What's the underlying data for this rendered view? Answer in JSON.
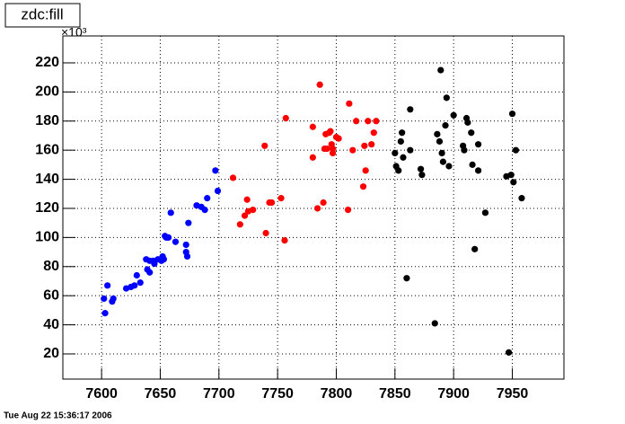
{
  "chart_data": {
    "type": "scatter",
    "title": "zdc:fill",
    "footer": "Tue Aug 22 15:36:17 2006",
    "y_multiplier": "×10³",
    "xlim": [
      7567,
      7994
    ],
    "xticks": [
      7600,
      7650,
      7700,
      7750,
      7800,
      7850,
      7900,
      7950
    ],
    "ylim": [
      2.7,
      238.5
    ],
    "yticks": [
      20,
      40,
      60,
      80,
      100,
      120,
      140,
      160,
      180,
      200,
      220
    ],
    "grid": true,
    "series": [
      {
        "color": "#0000ff",
        "x": [
          7602,
          7603,
          7605,
          7609,
          7610,
          7621,
          7625,
          7628,
          7630,
          7633,
          7638,
          7639,
          7641,
          7641,
          7644,
          7645,
          7648,
          7651,
          7652,
          7653,
          7654,
          7655,
          7656,
          7657,
          7659,
          7663,
          7672,
          7672,
          7673,
          7674,
          7681,
          7685,
          7688,
          7690,
          7697,
          7699
        ],
        "values": [
          58,
          48,
          67,
          56,
          58,
          65,
          66,
          67,
          74,
          69,
          85,
          78,
          76,
          84,
          84,
          82,
          85,
          84,
          87,
          85,
          101,
          100,
          100,
          100,
          117,
          97,
          95,
          90,
          87,
          110,
          122,
          121,
          119,
          127,
          146,
          132
        ]
      },
      {
        "color": "#ff0000",
        "x": [
          7712,
          7718,
          7722,
          7724,
          7725,
          7729,
          7739,
          7740,
          7743,
          7745,
          7753,
          7756,
          7757,
          7780,
          7780,
          7784,
          7786,
          7789,
          7790,
          7791,
          7792,
          7794,
          7795,
          7796,
          7797,
          7797,
          7800,
          7802,
          7810,
          7811,
          7814,
          7817,
          7823,
          7824,
          7825,
          7827,
          7830,
          7832,
          7834
        ],
        "values": [
          141,
          109,
          115,
          126,
          118,
          119,
          163,
          103,
          124,
          124,
          127,
          98,
          182,
          176,
          155,
          120,
          205,
          124,
          161,
          171,
          161,
          172,
          173,
          164,
          161,
          158,
          169,
          168,
          119,
          192,
          160,
          180,
          135,
          163,
          146,
          180,
          164,
          172,
          180
        ]
      },
      {
        "color": "#000000",
        "x": [
          7850,
          7851,
          7853,
          7855,
          7856,
          7857,
          7860,
          7863,
          7863,
          7872,
          7873,
          7884,
          7886,
          7888,
          7889,
          7890,
          7891,
          7893,
          7894,
          7896,
          7900,
          7908,
          7909,
          7911,
          7912,
          7915,
          7916,
          7918,
          7921,
          7921,
          7927,
          7945,
          7947,
          7949,
          7950,
          7951,
          7953,
          7958
        ],
        "values": [
          158,
          149,
          146,
          166,
          172,
          155,
          72,
          160,
          188,
          147,
          143,
          41,
          171,
          166,
          215,
          158,
          152,
          177,
          196,
          149,
          184,
          163,
          160,
          182,
          179,
          172,
          150,
          92,
          164,
          146,
          117,
          142,
          21,
          143,
          185,
          138,
          160,
          127
        ]
      }
    ]
  }
}
